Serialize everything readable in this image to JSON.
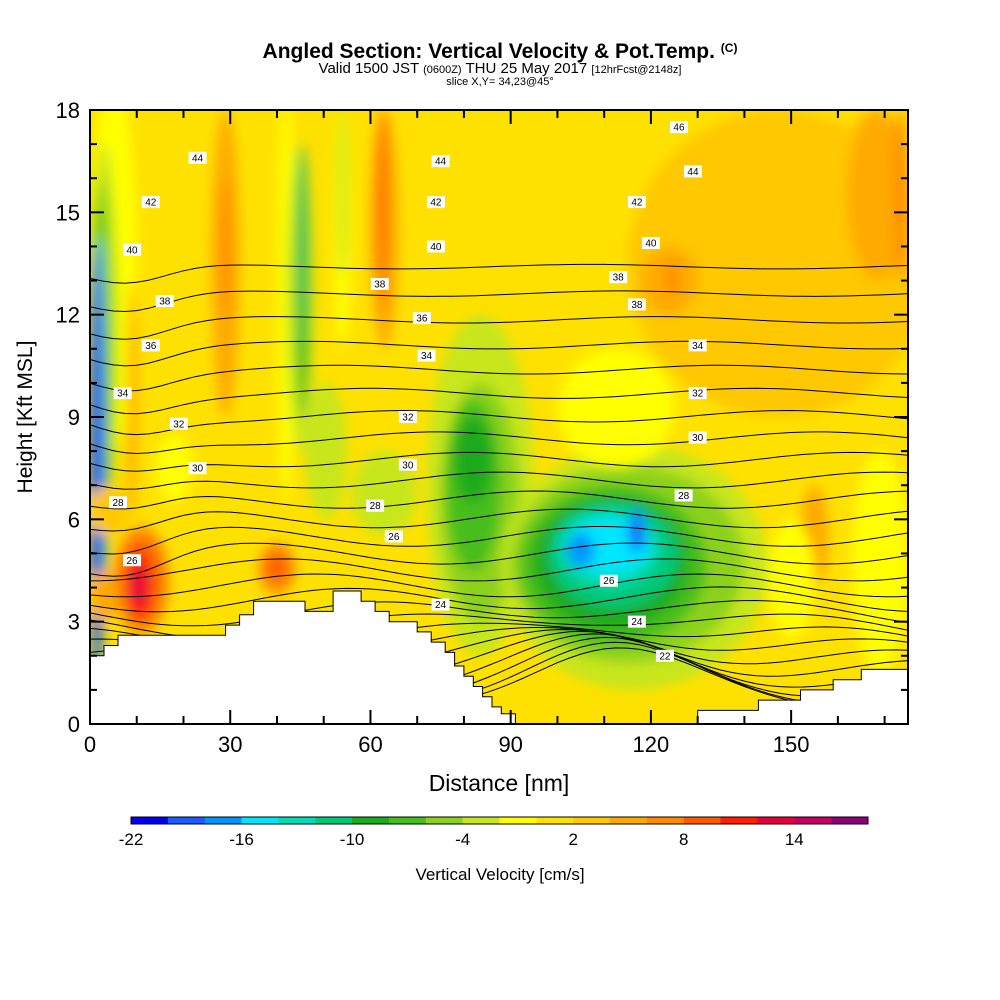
{
  "title": {
    "main": "Angled Section: Vertical Velocity & Pot.Temp.",
    "main_suffix": "(C)",
    "valid_pre": "Valid 1500 JST",
    "valid_utc": "(0600Z)",
    "valid_post": "THU 25 May 2017",
    "forecast": "[12hrFcst@2148z]",
    "slice": "slice X,Y= 34,23@45°"
  },
  "chart_data": {
    "type": "heatmap",
    "xlabel": "Distance [nm]",
    "ylabel": "Height [Kft MSL]",
    "xlim": [
      0,
      175
    ],
    "ylim": [
      0,
      18
    ],
    "x_ticks": [
      0,
      30,
      60,
      90,
      120,
      150
    ],
    "y_ticks": [
      0,
      3,
      6,
      9,
      12,
      15,
      18
    ],
    "colorbar": {
      "label": "Vertical Velocity [cm/s]",
      "tick_labels": [
        "-22",
        "-16",
        "-10",
        "-4",
        "2",
        "8",
        "14"
      ],
      "tick_values": [
        -22,
        -16,
        -10,
        -4,
        2,
        8,
        14
      ],
      "levels": [
        -22,
        -20,
        -18,
        -16,
        -14,
        -12,
        -10,
        -8,
        -6,
        -4,
        -2,
        0,
        2,
        4,
        6,
        8,
        10,
        12,
        14,
        16,
        18
      ],
      "colors": [
        "#0000ee",
        "#1e5aff",
        "#0096ff",
        "#00e6ff",
        "#00dcb4",
        "#00c878",
        "#1eaa1e",
        "#46be1e",
        "#8cd21e",
        "#c8e61e",
        "#ffff00",
        "#ffe100",
        "#ffc800",
        "#ffaa00",
        "#ff8c00",
        "#ff5a00",
        "#ff1e00",
        "#e6003c",
        "#c80064",
        "#8c0078"
      ]
    },
    "contour_series": {
      "name": "Potential Temperature",
      "labels": [
        {
          "text": "46",
          "x": 126,
          "y": 17.5
        },
        {
          "text": "44",
          "x": 23,
          "y": 16.6
        },
        {
          "text": "44",
          "x": 75,
          "y": 16.5
        },
        {
          "text": "44",
          "x": 129,
          "y": 16.2
        },
        {
          "text": "42",
          "x": 13,
          "y": 15.3
        },
        {
          "text": "42",
          "x": 74,
          "y": 15.3
        },
        {
          "text": "42",
          "x": 117,
          "y": 15.3
        },
        {
          "text": "40",
          "x": 9,
          "y": 13.9
        },
        {
          "text": "40",
          "x": 74,
          "y": 14.0
        },
        {
          "text": "40",
          "x": 120,
          "y": 14.1
        },
        {
          "text": "38",
          "x": 16,
          "y": 12.4
        },
        {
          "text": "38",
          "x": 62,
          "y": 12.9
        },
        {
          "text": "38",
          "x": 113,
          "y": 13.1
        },
        {
          "text": "38",
          "x": 117,
          "y": 12.3
        },
        {
          "text": "36",
          "x": 13,
          "y": 11.1
        },
        {
          "text": "36",
          "x": 71,
          "y": 11.9
        },
        {
          "text": "34",
          "x": 7,
          "y": 9.7
        },
        {
          "text": "34",
          "x": 72,
          "y": 10.8
        },
        {
          "text": "34",
          "x": 130,
          "y": 11.1
        },
        {
          "text": "32",
          "x": 19,
          "y": 8.8
        },
        {
          "text": "32",
          "x": 68,
          "y": 9.0
        },
        {
          "text": "32",
          "x": 130,
          "y": 9.7
        },
        {
          "text": "30",
          "x": 23,
          "y": 7.5
        },
        {
          "text": "30",
          "x": 68,
          "y": 7.6
        },
        {
          "text": "30",
          "x": 130,
          "y": 8.4
        },
        {
          "text": "28",
          "x": 6,
          "y": 6.5
        },
        {
          "text": "28",
          "x": 61,
          "y": 6.4
        },
        {
          "text": "28",
          "x": 127,
          "y": 6.7
        },
        {
          "text": "26",
          "x": 9,
          "y": 4.8
        },
        {
          "text": "26",
          "x": 65,
          "y": 5.5
        },
        {
          "text": "26",
          "x": 111,
          "y": 4.2
        },
        {
          "text": "24",
          "x": 75,
          "y": 3.5
        },
        {
          "text": "24",
          "x": 117,
          "y": 3.0
        },
        {
          "text": "22",
          "x": 123,
          "y": 2.0
        }
      ]
    }
  }
}
